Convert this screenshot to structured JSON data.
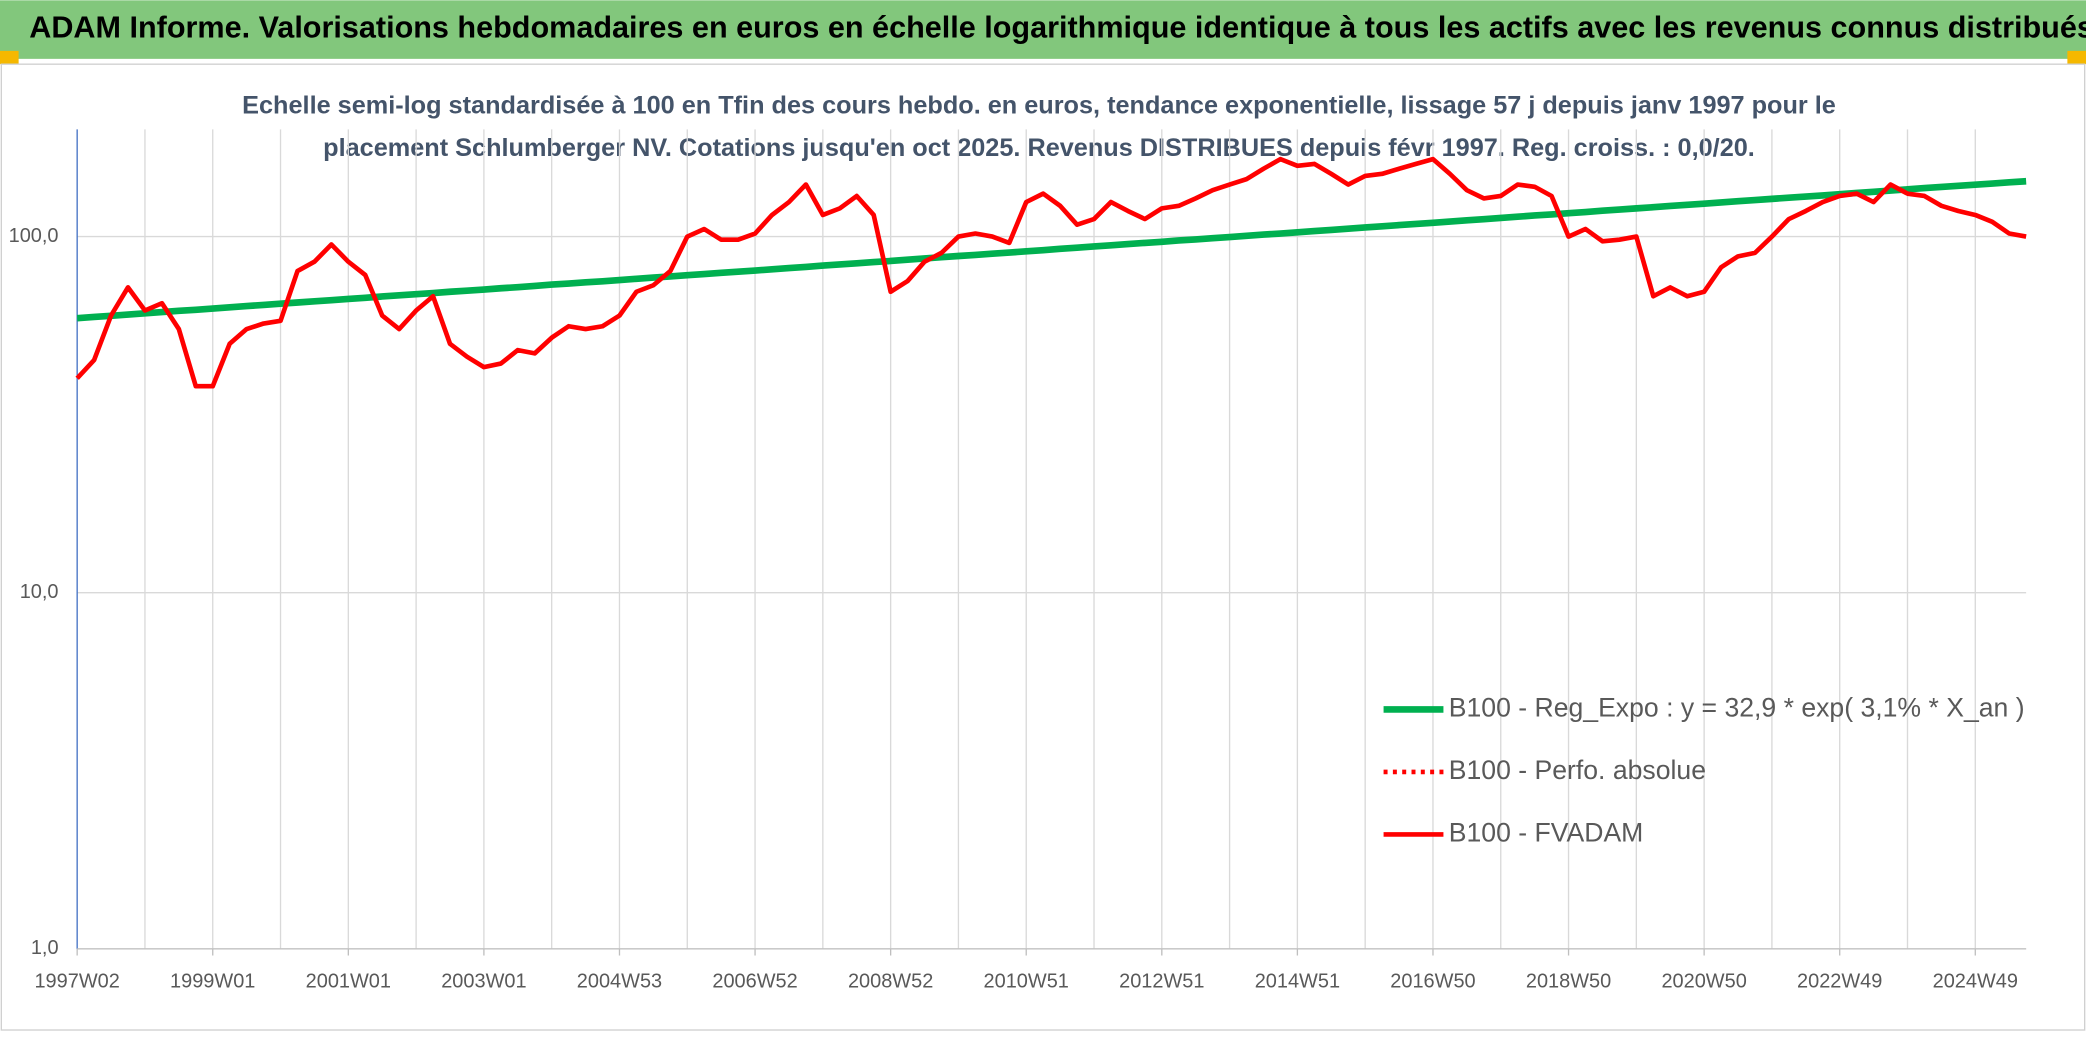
{
  "chart_data": {
    "type": "line",
    "title": "ADAM Informe. Valorisations hebdomadaires en euros en échelle logarithmique identique à tous les actifs avec les revenus connus distribués",
    "subtitle": [
      "Echelle semi-log standardisée à 100 en Tfin des cours hebdo. en euros, tendance exponentielle, lissage 57 j depuis janv 1997 pour le",
      "placement Schlumberger NV. Cotations jusqu'en oct 2025. Revenus DISTRIBUES depuis févr 1997. Reg. croiss. : 0,0/20."
    ],
    "categories": [
      "1997W02",
      null,
      null,
      null,
      null,
      null,
      null,
      null,
      "1999W01",
      null,
      null,
      null,
      null,
      null,
      null,
      null,
      "2001W01",
      null,
      null,
      null,
      null,
      null,
      null,
      null,
      "2003W01",
      null,
      null,
      null,
      null,
      null,
      null,
      null,
      "2004W53",
      null,
      null,
      null,
      null,
      null,
      null,
      null,
      "2006W52",
      null,
      null,
      null,
      null,
      null,
      null,
      null,
      "2008W52",
      null,
      null,
      null,
      null,
      null,
      null,
      null,
      "2010W51",
      null,
      null,
      null,
      null,
      null,
      null,
      null,
      "2012W51",
      null,
      null,
      null,
      null,
      null,
      null,
      null,
      "2014W51",
      null,
      null,
      null,
      null,
      null,
      null,
      null,
      "2016W50",
      null,
      null,
      null,
      null,
      null,
      null,
      null,
      "2018W50",
      null,
      null,
      null,
      null,
      null,
      null,
      null,
      "2020W50",
      null,
      null,
      null,
      null,
      null,
      null,
      null,
      "2022W49",
      null,
      null,
      null,
      null,
      null,
      null,
      null,
      "2024W49",
      null,
      null,
      null
    ],
    "series": [
      {
        "name": "B100 - Reg_Expo : y = 32,9 * exp( 3,1% *  X_an )",
        "color": "#00b050",
        "style": "solid",
        "values": [
          59.0,
          59.5,
          59.9,
          60.4,
          60.9,
          61.4,
          61.9,
          62.3,
          62.8,
          63.3,
          63.8,
          64.3,
          64.8,
          65.3,
          65.8,
          66.3,
          66.8,
          67.3,
          67.9,
          68.4,
          68.9,
          69.4,
          70.0,
          70.5,
          71.0,
          71.6,
          72.1,
          72.7,
          73.3,
          73.8,
          74.4,
          74.9,
          75.5,
          76.1,
          76.7,
          77.3,
          77.9,
          78.5,
          79.1,
          79.7,
          80.3,
          80.9,
          81.6,
          82.2,
          82.9,
          83.5,
          84.1,
          84.8,
          85.4,
          86.1,
          86.8,
          87.5,
          88.2,
          88.8,
          89.5,
          90.2,
          90.9,
          91.6,
          92.4,
          93.1,
          93.8,
          94.5,
          95.3,
          96.0,
          96.7,
          97.5,
          98.2,
          99.0,
          99.7,
          100.5,
          101.3,
          102.0,
          102.8,
          103.6,
          104.4,
          105.2,
          106.1,
          106.9,
          107.7,
          108.5,
          109.3,
          110.2,
          111.1,
          111.9,
          112.8,
          113.7,
          114.6,
          115.4,
          116.3,
          117.2,
          118.2,
          119.1,
          120.0,
          120.9,
          121.9,
          122.8,
          123.7,
          124.7,
          125.7,
          126.6,
          127.6,
          128.6,
          129.5,
          130.5,
          131.5,
          132.6,
          133.6,
          134.7,
          135.7,
          136.8,
          137.8,
          138.9,
          139.9,
          140.9,
          142.0,
          143.0
        ]
      },
      {
        "name": "B100 - Perfo. absolue",
        "color": "#ff0000",
        "style": "dotted"
      },
      {
        "name": "B100 - FVADAM",
        "color": "#ff0000",
        "style": "solid",
        "values": [
          40,
          45,
          60,
          72,
          62,
          65,
          55,
          38,
          38,
          50,
          55,
          57,
          58,
          80,
          85,
          95,
          85,
          78,
          60,
          55,
          62,
          68,
          50,
          46,
          43,
          44,
          48,
          47,
          52,
          56,
          55,
          56,
          60,
          70,
          73,
          80,
          100,
          105,
          98,
          98,
          102,
          115,
          125,
          140,
          115,
          120,
          130,
          115,
          70,
          75,
          85,
          90,
          100,
          102,
          100,
          96,
          125,
          132,
          122,
          108,
          112,
          125,
          118,
          112,
          120,
          122,
          128,
          135,
          140,
          145,
          155,
          165,
          158,
          160,
          150,
          140,
          148,
          150,
          155,
          160,
          165,
          150,
          135,
          128,
          130,
          140,
          138,
          130,
          100,
          105,
          97,
          98,
          100,
          68,
          72,
          68,
          70,
          82,
          88,
          90,
          100,
          112,
          118,
          125,
          130,
          132,
          125,
          140,
          132,
          130,
          122,
          118,
          115,
          110,
          102,
          100
        ]
      }
    ],
    "log_scale": true,
    "ylim": [
      1,
      200
    ],
    "yticks": [
      {
        "value": 1,
        "label": "1,0"
      },
      {
        "value": 10,
        "label": "10,0"
      },
      {
        "value": 100,
        "label": "100,0"
      }
    ],
    "grid": true,
    "legend": "lower right"
  }
}
